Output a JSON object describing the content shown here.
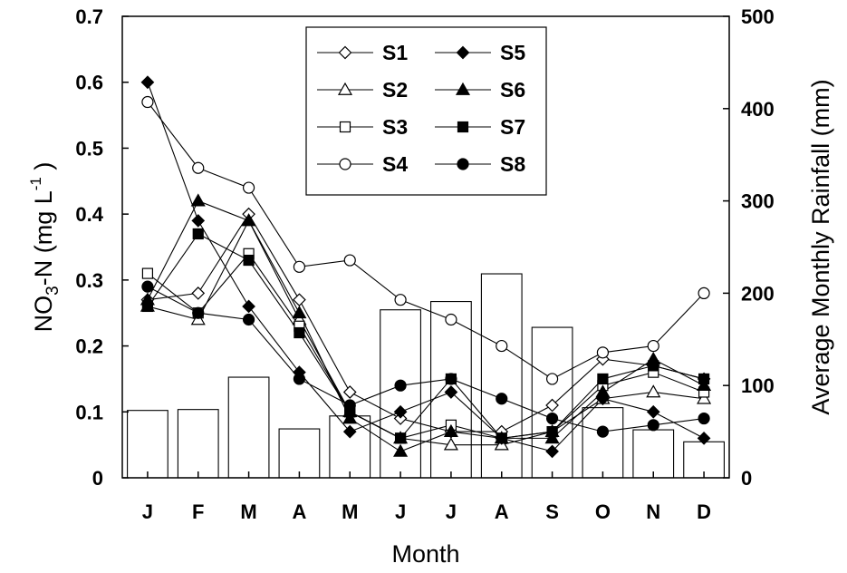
{
  "chart_data": {
    "type": "line",
    "categories": [
      "J",
      "F",
      "M",
      "A",
      "M",
      "J",
      "J",
      "A",
      "S",
      "O",
      "N",
      "D"
    ],
    "xlabel": "Month",
    "ylabel": {
      "prefix": "NO",
      "sub": "3",
      "mid": "-N (mg L",
      "sup": "-1",
      "suffix": " )"
    },
    "ylim": [
      0,
      0.7
    ],
    "yticks": [
      "0",
      "0.1",
      "0.2",
      "0.3",
      "0.4",
      "0.5",
      "0.6",
      "0.7"
    ],
    "y2label": "Average Monthly Rainfall (mm)",
    "y2lim": [
      0,
      500
    ],
    "y2ticks": [
      "0",
      "100",
      "200",
      "300",
      "400",
      "500"
    ],
    "rainfall_bars": [
      73,
      74,
      109,
      53,
      67,
      182,
      191,
      221,
      163,
      76,
      52,
      39
    ],
    "series": [
      {
        "name": "S1",
        "marker": "diamond-open",
        "values": [
          0.27,
          0.28,
          0.4,
          0.27,
          0.13,
          0.09,
          0.07,
          0.07,
          0.11,
          0.18,
          0.17,
          0.15
        ]
      },
      {
        "name": "S2",
        "marker": "triangle-open",
        "values": [
          0.26,
          0.24,
          0.39,
          0.24,
          0.1,
          0.06,
          0.05,
          0.05,
          0.07,
          0.12,
          0.13,
          0.12
        ]
      },
      {
        "name": "S3",
        "marker": "square-open",
        "values": [
          0.31,
          0.25,
          0.34,
          0.23,
          0.1,
          0.06,
          0.08,
          0.06,
          0.07,
          0.14,
          0.16,
          0.13
        ]
      },
      {
        "name": "S4",
        "marker": "circle-open",
        "values": [
          0.57,
          0.47,
          0.44,
          0.32,
          0.33,
          0.27,
          0.24,
          0.2,
          0.15,
          0.19,
          0.2,
          0.28
        ]
      },
      {
        "name": "S5",
        "marker": "diamond-filled",
        "values": [
          0.6,
          0.39,
          0.26,
          0.16,
          0.07,
          0.1,
          0.13,
          0.06,
          0.04,
          0.12,
          0.1,
          0.06
        ]
      },
      {
        "name": "S6",
        "marker": "triangle-filled",
        "values": [
          0.27,
          0.42,
          0.39,
          0.25,
          0.09,
          0.04,
          0.07,
          0.06,
          0.06,
          0.13,
          0.18,
          0.14
        ]
      },
      {
        "name": "S7",
        "marker": "square-filled",
        "values": [
          0.26,
          0.37,
          0.33,
          0.22,
          0.1,
          0.06,
          0.15,
          0.06,
          0.07,
          0.15,
          0.17,
          0.15
        ]
      },
      {
        "name": "S8",
        "marker": "circle-filled",
        "values": [
          0.29,
          0.25,
          0.24,
          0.15,
          0.11,
          0.14,
          0.15,
          0.12,
          0.09,
          0.07,
          0.08,
          0.09
        ]
      }
    ]
  }
}
